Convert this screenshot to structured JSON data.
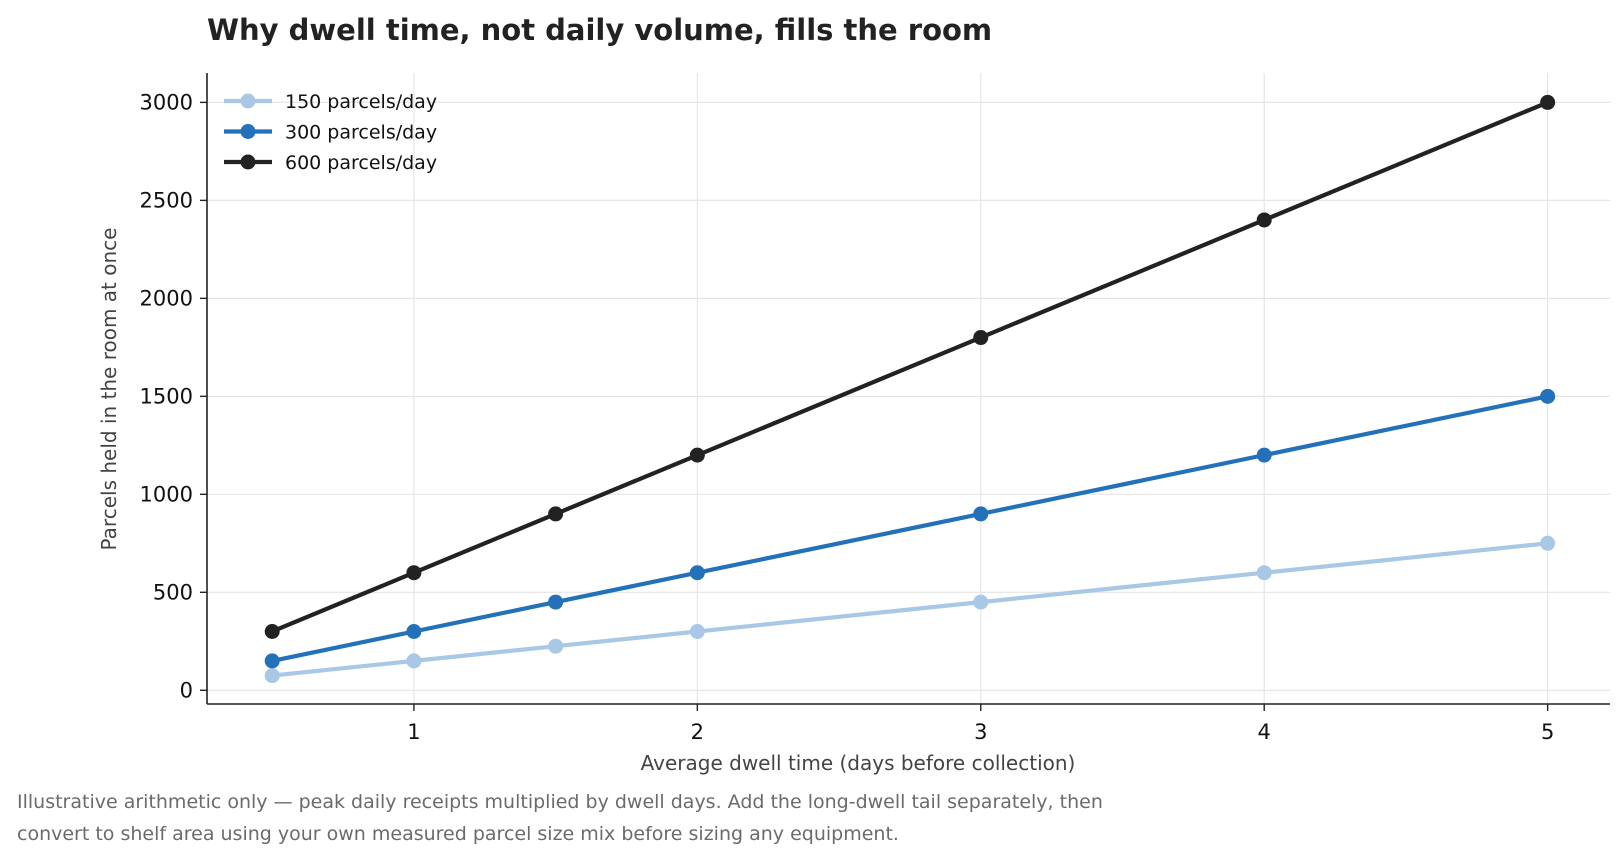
{
  "chart_data": {
    "type": "line",
    "title": "Why dwell time, not daily volume, fills the room",
    "xlabel": "Average dwell time (days before collection)",
    "ylabel": "Parcels held in the room at once",
    "x": [
      0.5,
      1,
      1.5,
      2,
      3,
      4,
      5
    ],
    "xticks": [
      "1",
      "2",
      "3",
      "4",
      "5"
    ],
    "xtick_values": [
      1,
      2,
      3,
      4,
      5
    ],
    "yticks": [
      "0",
      "500",
      "1000",
      "1500",
      "2000",
      "2500",
      "3000"
    ],
    "ytick_values": [
      0,
      500,
      1000,
      1500,
      2000,
      2500,
      3000
    ],
    "xlim": [
      0.27,
      5.22
    ],
    "ylim": [
      -70,
      3150
    ],
    "grid": true,
    "legend_position": "top-left",
    "series": [
      {
        "name": "150 parcels/day",
        "color": "#a9c8e6",
        "values": [
          75,
          150,
          225,
          300,
          450,
          600,
          750
        ]
      },
      {
        "name": "300 parcels/day",
        "color": "#2372b9",
        "values": [
          150,
          300,
          450,
          600,
          900,
          1200,
          1500
        ]
      },
      {
        "name": "600 parcels/day",
        "color": "#222222",
        "values": [
          300,
          600,
          900,
          1200,
          1800,
          2400,
          3000
        ]
      }
    ]
  },
  "footnote": {
    "line1": "Illustrative arithmetic only — peak daily receipts multiplied by dwell days. Add the long-dwell tail separately, then",
    "line2": "convert to shelf area using your own measured parcel size mix before sizing any equipment."
  }
}
